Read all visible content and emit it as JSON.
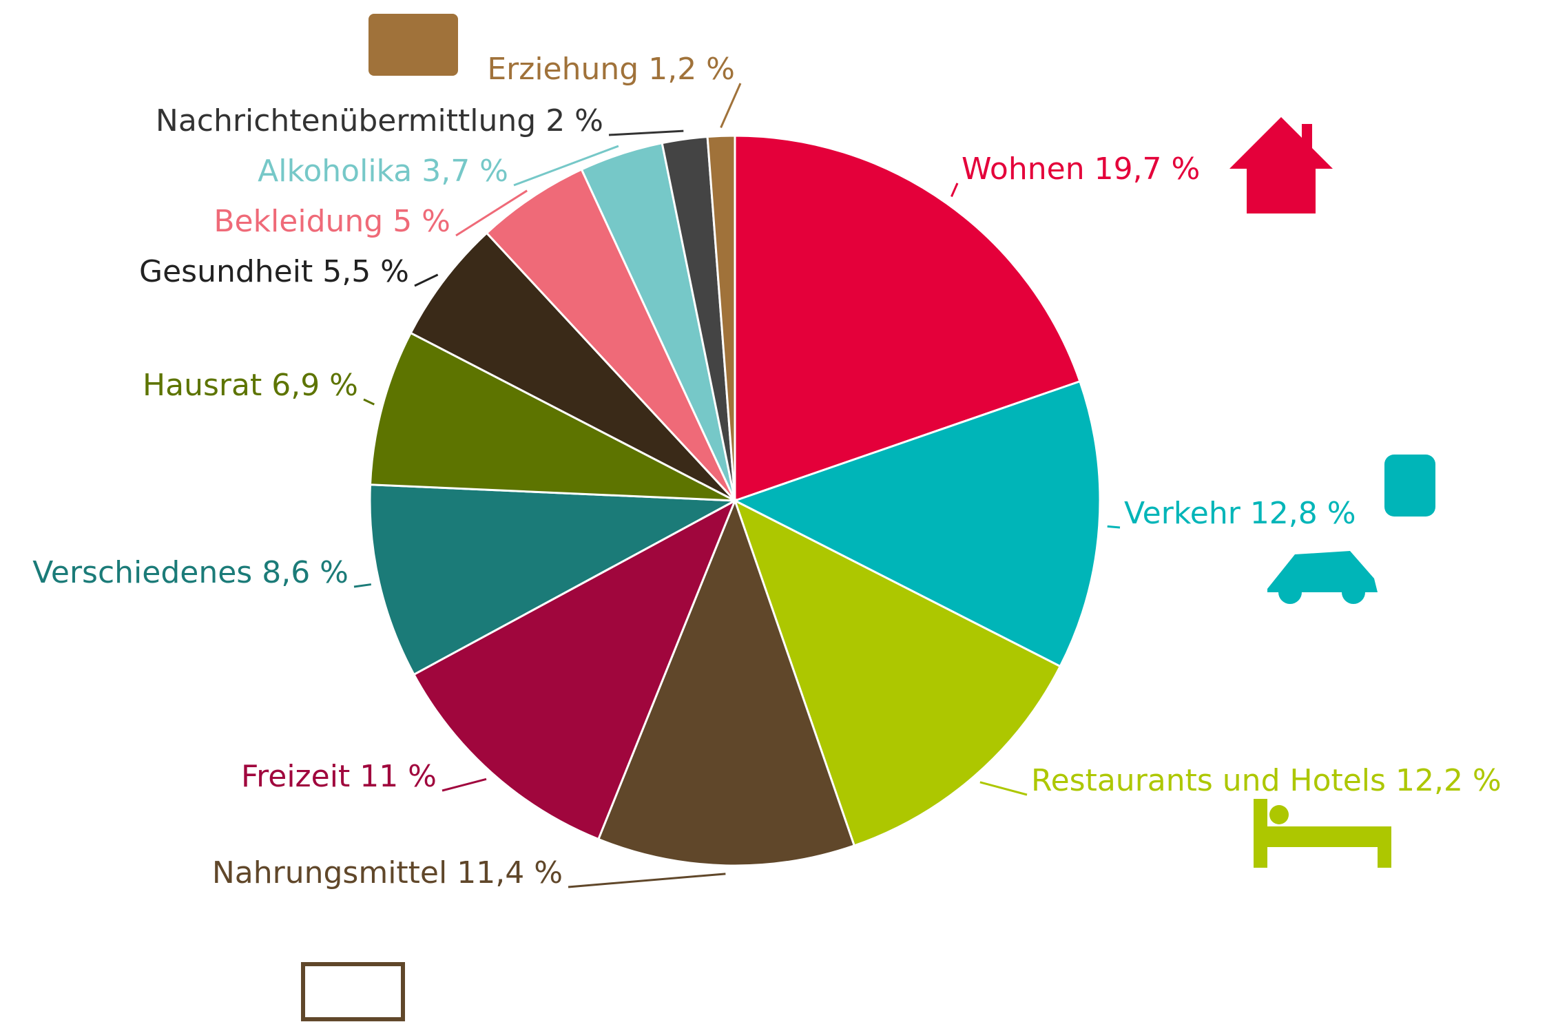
{
  "chart_data": {
    "type": "pie",
    "categories": [
      "Wohnen",
      "Verkehr",
      "Restaurants und Hotels",
      "Nahrungsmittel",
      "Freizeit",
      "Verschiedenes",
      "Hausrat",
      "Gesundheit",
      "Bekleidung",
      "Alkoholika",
      "Nachrichtenübermittlung",
      "Erziehung"
    ],
    "values": [
      19.7,
      12.8,
      12.2,
      11.4,
      11,
      8.6,
      6.9,
      5.5,
      5,
      3.7,
      2,
      1.2
    ],
    "value_labels": [
      "19,7 %",
      "12,8 %",
      "12,2 %",
      "11,4 %",
      "11 %",
      "8,6 %",
      "6,9 %",
      "5,5 %",
      "5 %",
      "3,7 %",
      "2 %",
      "1,2 %"
    ],
    "colors": [
      "#e4003a",
      "#00b5b8",
      "#adc700",
      "#60472a",
      "#a0063d",
      "#1b7b78",
      "#5d7400",
      "#3a2a18",
      "#ef6a78",
      "#76c8c8",
      "#444444",
      "#a0723a"
    ],
    "label_colors": [
      "#e4003a",
      "#00b5b8",
      "#adc700",
      "#60472a",
      "#a0063d",
      "#1b7b78",
      "#5d7400",
      "#222222",
      "#ef6a78",
      "#76c8c8",
      "#333333",
      "#a0723a"
    ]
  }
}
